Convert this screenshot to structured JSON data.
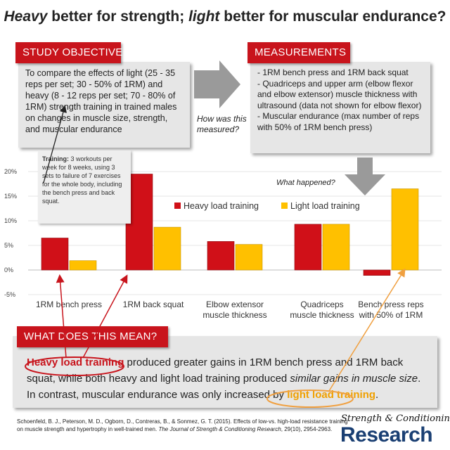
{
  "title": {
    "part1": "Heavy",
    "part2": " better for strength; ",
    "part3": "light",
    "part4": " better for muscular endurance?"
  },
  "study_objective": {
    "heading": "STUDY OBJECTIVE",
    "text": "To compare the effects of light (25 - 35 reps per set; 30 - 50% of 1RM) and heavy (8 - 12 reps per set; 70 - 80% of 1RM) strength training in trained males on changes in muscle size, strength, and muscular endurance"
  },
  "how_measured": "How was this measured?",
  "measurements": {
    "heading": "MEASUREMENTS",
    "items": [
      "- 1RM bench press and 1RM back squat",
      "- Quadriceps and upper arm (elbow flexor and elbow extensor) muscle thickness with ultrasound (data not shown for elbow flexor)",
      "- Muscular endurance (max number of reps with 50% of 1RM bench press)"
    ]
  },
  "what_happened": "What happened?",
  "training": {
    "label": "Training:",
    "text": " 3 workouts per week for 8 weeks, using 3 sets to failure of 7 exercises for the whole body, including the bench press and back squat."
  },
  "chart_data": {
    "type": "bar",
    "categories": [
      [
        "1RM bench press"
      ],
      [
        "1RM back squat"
      ],
      [
        "Elbow extensor",
        "muscle thickness"
      ],
      [
        "Quadriceps",
        "muscle thickness"
      ],
      [
        "Bench press reps",
        "with 50% of 1RM"
      ]
    ],
    "series": [
      {
        "name": "Heavy load training",
        "color": "#d01018",
        "values": [
          6.5,
          19.5,
          5.8,
          9.3,
          -1.1
        ]
      },
      {
        "name": "Light load training",
        "color": "#ffc000",
        "values": [
          1.9,
          8.7,
          5.2,
          9.3,
          16.5
        ]
      }
    ],
    "ylim": [
      -5,
      20
    ],
    "yticks": [
      "20%",
      "15%",
      "10%",
      "5%",
      "0%",
      "-5%"
    ],
    "ytick_values": [
      20,
      15,
      10,
      5,
      0,
      -5
    ],
    "grid": true,
    "legend": "center-right"
  },
  "meaning": {
    "heading": "WHAT DOES THIS MEAN?",
    "heavy": "Heavy load training",
    "text1": " produced greater gains in 1RM bench press and 1RM back squat, while both heavy and light load training produced ",
    "similar": "similar gains in muscle size",
    "text2": ". In contrast, muscular endurance was only increased by ",
    "light": "light load training",
    "text3": "."
  },
  "citation": {
    "main": "Schoenfeld, B. J., Peterson, M. D., Ogborn, D., Contreras, B., & Sonmez, G. T. (2015). Effects of low-vs. high-load resistance training on muscle strength and hypertrophy in well-trained men. ",
    "journal": "The Journal of Strength & Conditioning Research",
    "rest": ", 29(10), 2954-2963."
  },
  "logo": {
    "top": "Strength & Conditioning",
    "main": "Research"
  },
  "colors": {
    "accent_red": "#c8141c",
    "heavy": "#d01018",
    "light": "#ffc000",
    "arrow_gray": "#9a9a9a",
    "box_gray": "#e6e6e6",
    "logo_blue": "#1a3f73"
  }
}
